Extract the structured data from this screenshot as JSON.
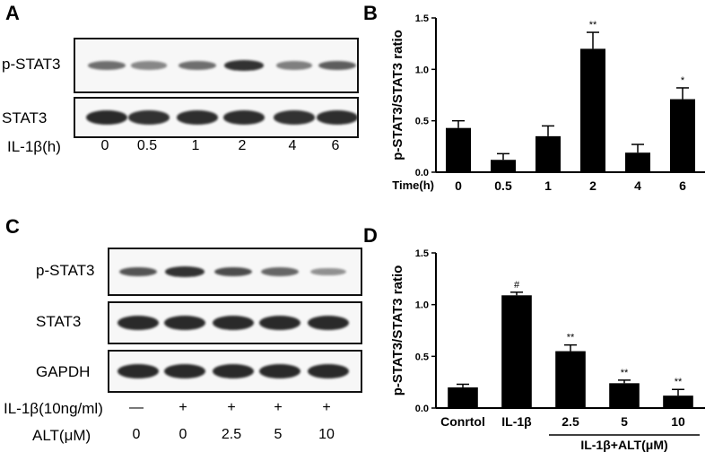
{
  "panels": {
    "A": {
      "letter": "A",
      "rows": [
        "p-STAT3",
        "STAT3"
      ],
      "condition_label": "IL-1β(h)",
      "conditions": [
        "0",
        "0.5",
        "1",
        "2",
        "4",
        "6"
      ],
      "band_intensity": {
        "p-STAT3": [
          0.55,
          0.4,
          0.55,
          0.9,
          0.45,
          0.65
        ],
        "STAT3": [
          0.95,
          0.9,
          0.92,
          0.92,
          0.9,
          0.92
        ]
      }
    },
    "C": {
      "letter": "C",
      "rows": [
        "p-STAT3",
        "STAT3",
        "GAPDH"
      ],
      "condition_rows": [
        {
          "label": "IL-1β(10ng/ml)",
          "values": [
            "—",
            "+",
            "+",
            "+",
            "+"
          ]
        },
        {
          "label": "ALT(μM)",
          "values": [
            "0",
            "0",
            "2.5",
            "5",
            "10"
          ]
        }
      ],
      "band_intensity": {
        "p-STAT3": [
          0.7,
          0.9,
          0.75,
          0.6,
          0.35
        ],
        "STAT3": [
          0.95,
          0.95,
          0.95,
          0.95,
          0.95
        ],
        "GAPDH": [
          0.95,
          0.95,
          0.95,
          0.95,
          0.95
        ]
      }
    },
    "B": {
      "letter": "B"
    },
    "D": {
      "letter": "D"
    }
  },
  "chart_data": [
    {
      "panel": "B",
      "type": "bar",
      "ylabel": "p-STAT3/STAT3 ratio",
      "xlabel": "Time(h)",
      "categories": [
        "0",
        "0.5",
        "1",
        "2",
        "4",
        "6"
      ],
      "values": [
        0.43,
        0.12,
        0.35,
        1.2,
        0.19,
        0.71
      ],
      "errors": [
        0.07,
        0.06,
        0.1,
        0.16,
        0.08,
        0.11
      ],
      "annotations": [
        "",
        "",
        "",
        "**",
        "",
        "*"
      ],
      "ylim": [
        0,
        1.5
      ],
      "yticks": [
        "0.0",
        "0.5",
        "1.0",
        "1.5"
      ]
    },
    {
      "panel": "D",
      "type": "bar",
      "ylabel": "p-STAT3/STAT3 ratio",
      "categories": [
        "Conrtol",
        "IL-1β",
        "2.5",
        "5",
        "10"
      ],
      "values": [
        0.2,
        1.09,
        0.55,
        0.24,
        0.12
      ],
      "errors": [
        0.03,
        0.03,
        0.06,
        0.03,
        0.06
      ],
      "annotations": [
        "",
        "#",
        "**",
        "**",
        "**"
      ],
      "group_label": "IL-1β+ALT(μM)",
      "ylim": [
        0,
        1.5
      ],
      "yticks": [
        "0.0",
        "0.5",
        "1.0",
        "1.5"
      ]
    }
  ]
}
